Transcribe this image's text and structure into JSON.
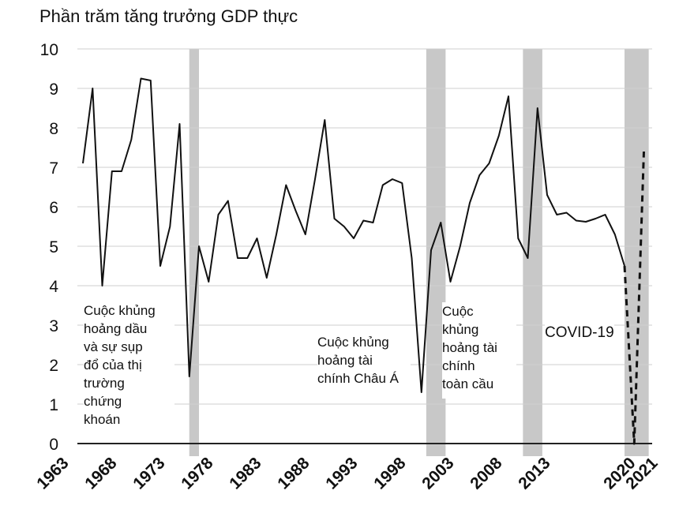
{
  "chart_data": {
    "type": "line",
    "title": "Phần trăm tăng trưởng GDP thực",
    "xlabel": "",
    "ylabel": "",
    "ylim": [
      0,
      10
    ],
    "yticks": [
      0,
      1,
      2,
      3,
      4,
      5,
      6,
      7,
      8,
      9,
      10
    ],
    "xlim": [
      1963,
      2021
    ],
    "xtick_labels": [
      "1963",
      "1968",
      "1973",
      "1978",
      "1983",
      "1988",
      "1993",
      "1998",
      "2003",
      "2008",
      "2013",
      "2020",
      "2021"
    ],
    "grid": true,
    "recessions": [
      {
        "start": 1974,
        "end": 1975
      },
      {
        "start": 1998.5,
        "end": 2000.5
      },
      {
        "start": 2008.5,
        "end": 2010.5
      },
      {
        "start": 2019,
        "end": 2021.5
      }
    ],
    "series": [
      {
        "name": "GDP growth",
        "style": "solid",
        "x": [
          1963,
          1964,
          1965,
          1966,
          1967,
          1968,
          1969,
          1970,
          1971,
          1972,
          1973,
          1974,
          1975,
          1976,
          1977,
          1978,
          1979,
          1980,
          1981,
          1982,
          1983,
          1984,
          1985,
          1986,
          1987,
          1988,
          1989,
          1990,
          1991,
          1992,
          1993,
          1994,
          1995,
          1996,
          1997,
          1998,
          1999,
          2000,
          2001,
          2002,
          2003,
          2004,
          2005,
          2006,
          2007,
          2008,
          2009,
          2010,
          2011,
          2012,
          2013,
          2014,
          2015,
          2016,
          2017,
          2018,
          2019
        ],
        "values": [
          7.1,
          9.0,
          4.0,
          6.9,
          6.9,
          7.7,
          9.25,
          9.2,
          4.5,
          5.5,
          8.1,
          1.7,
          5.0,
          4.1,
          5.8,
          6.15,
          4.7,
          4.7,
          5.2,
          4.2,
          5.3,
          6.55,
          5.9,
          5.3,
          6.7,
          8.2,
          5.7,
          5.5,
          5.2,
          5.65,
          5.6,
          6.55,
          6.7,
          6.6,
          4.7,
          1.3,
          4.9,
          5.6,
          4.1,
          5.0,
          6.1,
          6.8,
          7.1,
          7.8,
          8.8,
          5.2,
          4.7,
          8.5,
          6.3,
          5.8,
          5.85,
          5.65,
          5.62,
          5.7,
          5.8,
          5.3,
          4.5
        ]
      },
      {
        "name": "COVID-19 projection",
        "style": "dashed",
        "x": [
          2019,
          2020,
          2021
        ],
        "values": [
          4.5,
          0.0,
          7.4
        ]
      }
    ],
    "annotations": [
      {
        "id": "oil",
        "text": "Cuộc khủng\nhoảng dầu\nvà sự sụp\nđổ của thị\ntrường\nchứng\nkhoán"
      },
      {
        "id": "asia",
        "text": "Cuộc khủng\nhoảng tài\nchính Châu Á"
      },
      {
        "id": "gfc",
        "text": "Cuộc\nkhủng\nhoảng tài\nchính\ntoàn cầu"
      },
      {
        "id": "covid",
        "text": "COVID-19"
      }
    ]
  }
}
